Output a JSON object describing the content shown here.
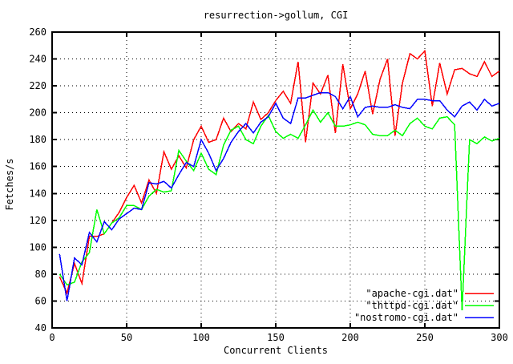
{
  "page": {
    "background": "#ffffff",
    "border_color": "#000000",
    "grid_color": "#000000",
    "text_color": "#000000"
  },
  "chart_data": {
    "type": "line",
    "title": "resurrection->gollum, CGI",
    "xlabel": "Concurrent Clients",
    "ylabel": "Fetches/s",
    "xlim": [
      0,
      300
    ],
    "ylim": [
      40,
      260
    ],
    "x_ticks": [
      0,
      50,
      100,
      150,
      200,
      250,
      300
    ],
    "y_ticks": [
      40,
      60,
      80,
      100,
      120,
      140,
      160,
      180,
      200,
      220,
      240,
      260
    ],
    "grid": "dotted",
    "legend_position": "bottom-right-inside",
    "x": [
      5,
      10,
      15,
      20,
      25,
      30,
      35,
      40,
      45,
      50,
      55,
      60,
      65,
      70,
      75,
      80,
      85,
      90,
      95,
      100,
      105,
      110,
      115,
      120,
      125,
      130,
      135,
      140,
      145,
      150,
      155,
      160,
      165,
      170,
      175,
      180,
      185,
      190,
      195,
      200,
      205,
      210,
      215,
      220,
      225,
      230,
      235,
      240,
      245,
      250,
      255,
      260,
      265,
      270,
      275,
      280,
      285,
      290,
      295,
      300
    ],
    "series": [
      {
        "name": "\"apache-cgi.dat\"",
        "color": "#ff0000",
        "values": [
          78,
          66,
          88,
          73,
          108,
          108,
          110,
          118,
          126,
          137,
          146,
          133,
          150,
          140,
          171,
          158,
          168,
          159,
          180,
          190,
          178,
          180,
          196,
          186,
          192,
          188,
          208,
          195,
          200,
          209,
          216,
          207,
          238,
          178,
          222,
          214,
          228,
          185,
          236,
          203,
          214,
          231,
          199,
          225,
          240,
          183,
          222,
          244,
          240,
          246,
          205,
          237,
          214,
          232,
          233,
          229,
          227,
          238,
          227,
          231
        ]
      },
      {
        "name": "\"thttpd-cgi.dat\"",
        "color": "#00ff00",
        "values": [
          80,
          72,
          74,
          89,
          96,
          128,
          110,
          118,
          122,
          131,
          131,
          128,
          138,
          143,
          141,
          142,
          172,
          164,
          157,
          170,
          158,
          154,
          176,
          187,
          190,
          180,
          177,
          190,
          198,
          186,
          181,
          184,
          181,
          191,
          202,
          193,
          200,
          190,
          190,
          191,
          193,
          191,
          184,
          183,
          183,
          187,
          183,
          192,
          196,
          190,
          188,
          196,
          197,
          191,
          53,
          180,
          177,
          182,
          179,
          181
        ]
      },
      {
        "name": "\"nostromo-cgi.dat\"",
        "color": "#0000ff",
        "values": [
          95,
          60,
          92,
          87,
          111,
          104,
          119,
          113,
          121,
          125,
          129,
          128,
          148,
          147,
          149,
          144,
          154,
          163,
          160,
          180,
          170,
          157,
          166,
          178,
          186,
          192,
          185,
          193,
          197,
          207,
          196,
          192,
          211,
          211,
          213,
          215,
          215,
          212,
          203,
          212,
          197,
          204,
          205,
          204,
          204,
          206,
          204,
          203,
          210,
          210,
          209,
          209,
          202,
          197,
          205,
          208,
          202,
          210,
          205,
          207
        ]
      }
    ]
  }
}
